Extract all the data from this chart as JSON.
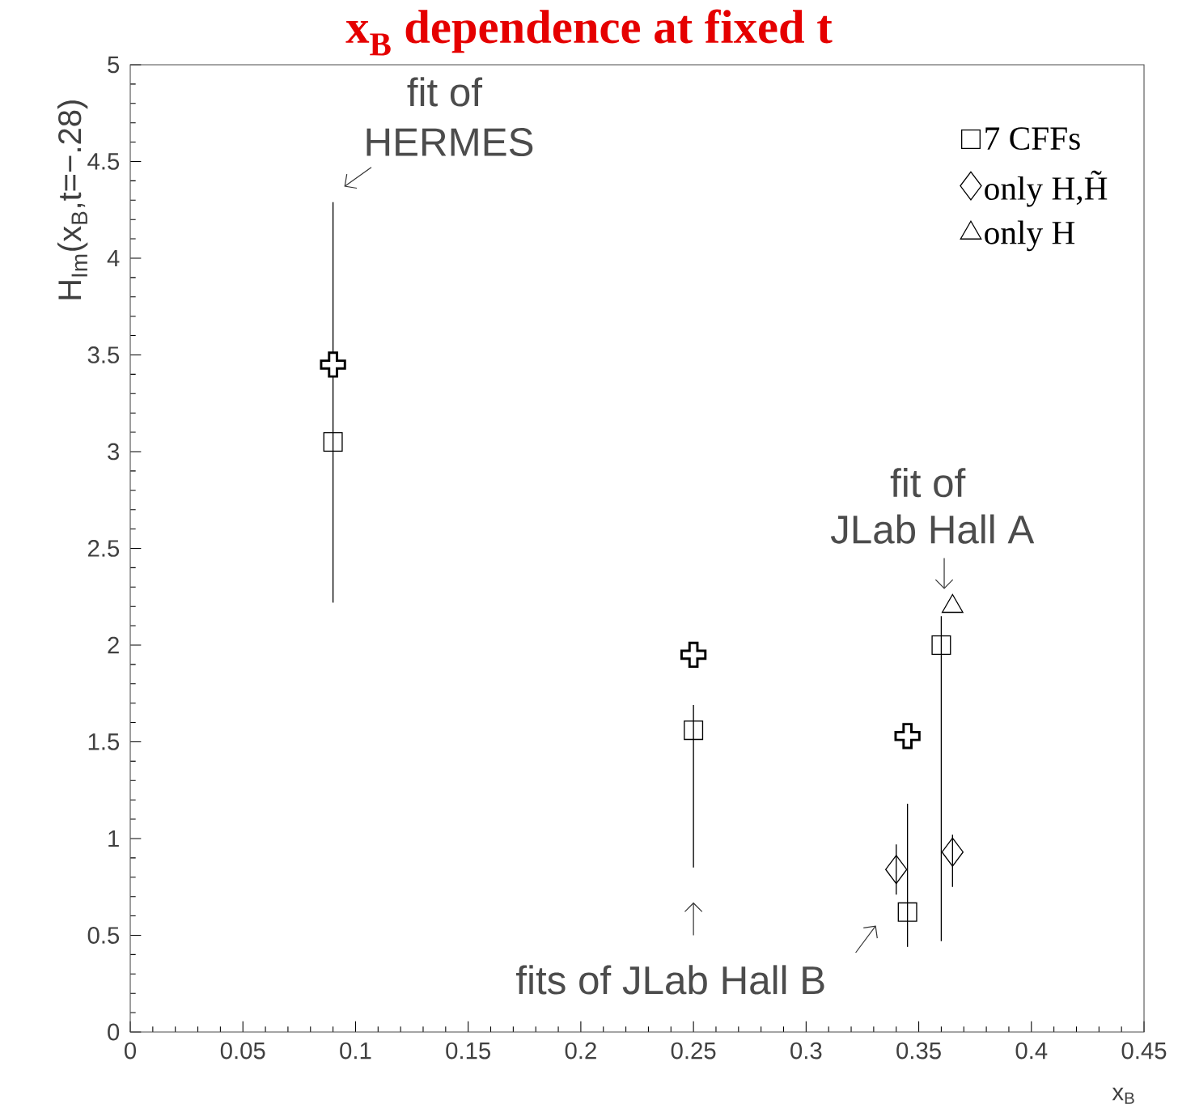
{
  "chart_data": {
    "type": "scatter",
    "title": "x$_{B}$ dependence at fixed t",
    "xlabel": "x$_{B}$",
    "ylabel": "H$_{Im}$(x$_{B}$,t=−.28)",
    "xlim": [
      0,
      0.45
    ],
    "ylim": [
      0,
      5
    ],
    "xticks": [
      0,
      0.05,
      0.1,
      0.15,
      0.2,
      0.25,
      0.3,
      0.35,
      0.4,
      0.45
    ],
    "yticks": [
      0,
      0.5,
      1,
      1.5,
      2,
      2.5,
      3,
      3.5,
      4,
      4.5,
      5
    ],
    "legend": "top right",
    "grid": false,
    "series": [
      {
        "name": "7 CFFs",
        "color": "#000000",
        "marker": "square",
        "x": [
          0.09,
          0.25,
          0.345,
          0.36
        ],
        "values": [
          3.05,
          1.56,
          0.62,
          2.0
        ],
        "errors": [
          [
            2.22,
            4.29
          ],
          [
            0.85,
            1.69
          ],
          [
            0.44,
            1.18
          ],
          [
            0.47,
            2.15
          ]
        ]
      },
      {
        "name": "only H,H̃",
        "color": "#000000",
        "marker": "diamond",
        "x": [
          0.34,
          0.365
        ],
        "values": [
          0.84,
          0.93
        ],
        "errors": [
          [
            0.71,
            0.97
          ],
          [
            0.75,
            1.02
          ]
        ]
      },
      {
        "name": "only H",
        "color": "#000000",
        "marker": "triangle",
        "x": [
          0.365
        ],
        "values": [
          2.2
        ]
      },
      {
        "color": "#000000",
        "marker": "cross",
        "x": [
          0.09,
          0.25,
          0.345
        ],
        "values": [
          3.45,
          1.95,
          1.53
        ]
      }
    ],
    "annotations": [
      "fit of",
      "HERMES",
      "fit of",
      "JLab Hall A",
      "fits of JLab Hall B"
    ]
  }
}
